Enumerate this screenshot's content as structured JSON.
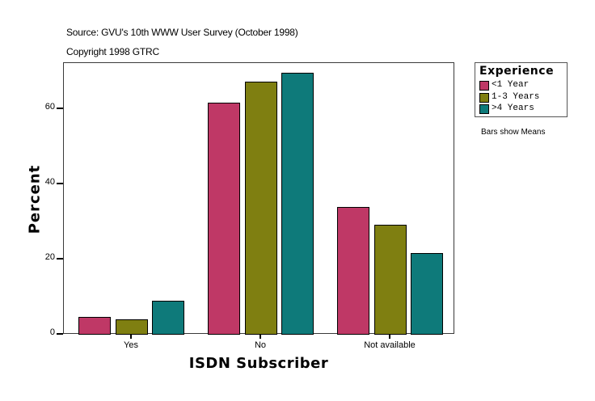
{
  "header": {
    "source": "Source: GVU's 10th WWW User Survey (October 1998)",
    "copyright": "Copyright 1998 GTRC"
  },
  "legend": {
    "title": "Experience",
    "items": [
      {
        "label": "<1 Year",
        "color": "#bf3866"
      },
      {
        "label": "1-3 Years",
        "color": "#7f7f11"
      },
      {
        "label": ">4 Years",
        "color": "#0e7a7a"
      }
    ]
  },
  "footnote": "Bars show Means",
  "axes": {
    "ylabel": "Percent",
    "xlabel": "ISDN Subscriber",
    "yticks": [
      "0",
      "20",
      "40",
      "60"
    ],
    "xticks": [
      "Yes",
      "No",
      "Not available"
    ]
  },
  "chart_data": {
    "type": "bar",
    "title": "Source: GVU's 10th WWW User Survey (October 1998)",
    "subtitle": "Copyright 1998 GTRC",
    "xlabel": "ISDN Subscriber",
    "ylabel": "Percent",
    "categories": [
      "Yes",
      "No",
      "Not available"
    ],
    "series": [
      {
        "name": "<1 Year",
        "color": "#bf3866",
        "values": [
          4.5,
          61.5,
          33.8
        ]
      },
      {
        "name": "1-3 Years",
        "color": "#7f7f11",
        "values": [
          3.9,
          67.1,
          29.0
        ]
      },
      {
        "name": ">4 Years",
        "color": "#0e7a7a",
        "values": [
          8.8,
          69.5,
          21.5
        ]
      }
    ],
    "ylim": [
      0,
      72
    ],
    "yticks": [
      0,
      20,
      40,
      60
    ],
    "grid": false,
    "legend_position": "right",
    "legend_title": "Experience",
    "annotation": "Bars show Means"
  }
}
